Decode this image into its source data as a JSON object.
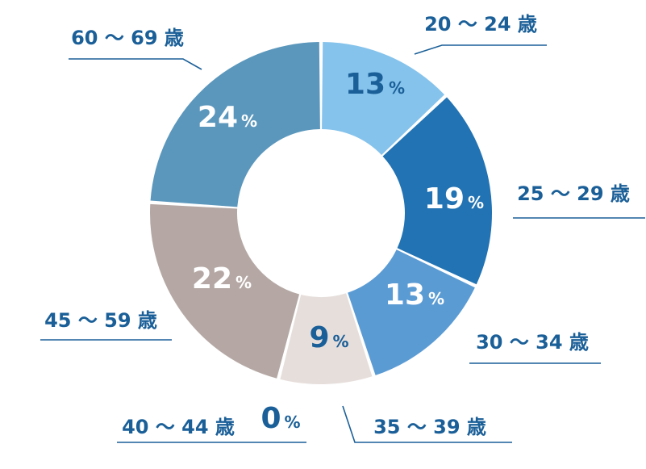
{
  "chart_data": {
    "type": "pie",
    "categories": [
      "20～24歳",
      "25～29歳",
      "30～34歳",
      "35～39歳",
      "40～44歳",
      "45～59歳",
      "60～69歳"
    ],
    "values": [
      13,
      19,
      13,
      9,
      0,
      22,
      24
    ],
    "label_texts": [
      "20 ～ 24 歳",
      "25 ～ 29 歳",
      "30 ～ 34 歳",
      "35 ～ 39 歳",
      "40 ～ 44 歳",
      "45 ～ 59 歳",
      "60 ～ 69 歳"
    ],
    "value_labels": [
      "13",
      "19",
      "13",
      "9",
      "0",
      "22",
      "24"
    ],
    "percent_sign": "%",
    "colors": [
      "#85c3ec",
      "#2273b3",
      "#5b9bd4",
      "#e6dedb",
      "#d9d9d9",
      "#b5a8a4",
      "#5b97bc"
    ],
    "value_label_colors": [
      "#1a5f98",
      "#ffffff",
      "#ffffff",
      "#1a5f98",
      "#1a5f98",
      "#ffffff",
      "#ffffff"
    ],
    "label_color": "#1a5f98",
    "donut": true,
    "legend": "none"
  }
}
